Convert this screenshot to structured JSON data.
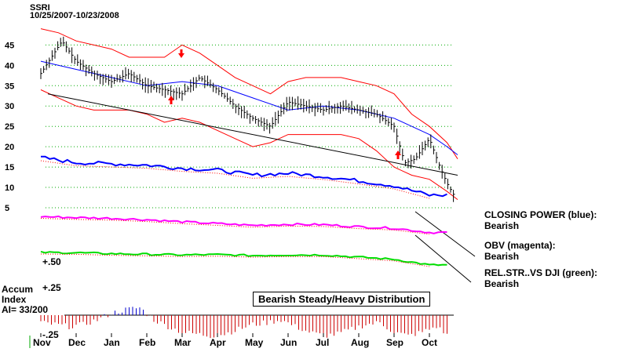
{
  "header": {
    "ticker": "SSRI",
    "date_range": "10/25/2007-10/23/2008"
  },
  "banner": "Bearish Steady/Heavy Distribution",
  "accum": {
    "label_line1": "Accum",
    "label_line2": "Index",
    "ai_value": "AI= 33/200",
    "ticks": [
      "+.50",
      "+.25",
      "-.25"
    ]
  },
  "annotations": {
    "cp_label": "CLOSING POWER (blue):",
    "cp_value": "Bearish",
    "obv_label": "OBV (magenta):",
    "obv_value": "Bearish",
    "rs_label": "REL.STR..VS DJI (green):",
    "rs_value": "Bearish"
  },
  "colors": {
    "price": "#000000",
    "bands": "#ff0000",
    "ma": "#0000ff",
    "closing_power": "#0000ff",
    "obv": "#ff00ff",
    "rel_str": "#00dd00",
    "grid": "#00aa00",
    "accum_pos": "#0000cc",
    "accum_neg": "#cc0000"
  },
  "chart_data": {
    "type": "line",
    "title": "SSRI",
    "subtitle": "10/25/2007-10/23/2008",
    "x_tick_labels": [
      "Nov",
      "Dec",
      "Jan",
      "Feb",
      "Mar",
      "Apr",
      "May",
      "Jun",
      "Jul",
      "Aug",
      "Sep",
      "Oct"
    ],
    "y_tick_labels": [
      "45",
      "40",
      "35",
      "30",
      "25",
      "20",
      "15",
      "10",
      "5"
    ],
    "ylim": [
      5,
      47
    ],
    "grid": true,
    "series": [
      {
        "name": "price",
        "x": [
          0,
          0.3,
          0.6,
          1,
          1.5,
          2,
          2.5,
          3,
          3.5,
          4,
          4.5,
          5,
          5.5,
          6,
          6.5,
          7,
          7.5,
          8,
          8.5,
          9,
          9.5,
          10,
          10.3,
          10.6,
          11,
          11.3,
          11.5,
          11.7
        ],
        "y": [
          38,
          42,
          46,
          41,
          38,
          36,
          38,
          35,
          34,
          33,
          37,
          34,
          30,
          27,
          25,
          31,
          30,
          29,
          30,
          29,
          28,
          25,
          16,
          17,
          22,
          15,
          11,
          8
        ]
      },
      {
        "name": "upper_band",
        "x": [
          0,
          0.5,
          1,
          1.5,
          2,
          2.5,
          3,
          3.5,
          4,
          4.5,
          5,
          5.5,
          6,
          6.5,
          7,
          7.5,
          8,
          8.5,
          9,
          9.5,
          10,
          10.5,
          11,
          11.5,
          11.8
        ],
        "y": [
          49,
          48,
          46,
          45,
          44,
          42,
          42,
          42,
          45,
          43,
          40,
          37,
          35,
          33,
          36,
          37,
          37,
          37,
          36,
          35,
          33,
          28,
          25,
          21,
          17
        ]
      },
      {
        "name": "lower_band",
        "x": [
          0,
          0.5,
          1,
          1.5,
          2,
          2.5,
          3,
          3.5,
          4,
          4.5,
          5,
          5.5,
          6,
          6.5,
          7,
          7.5,
          8,
          8.5,
          9,
          9.5,
          10,
          10.5,
          11,
          11.5,
          11.8
        ],
        "y": [
          34,
          32,
          30,
          29,
          29,
          29,
          28,
          26,
          27,
          26,
          24,
          22,
          20,
          21,
          23,
          23,
          23,
          23,
          22,
          19,
          15,
          13,
          12,
          9,
          7
        ]
      },
      {
        "name": "moving_average",
        "x": [
          0,
          1,
          2,
          3,
          4,
          5,
          6,
          7,
          8,
          9,
          10,
          10.5,
          11,
          11.5,
          11.8
        ],
        "y": [
          41,
          39,
          37,
          35,
          36,
          35,
          32,
          29,
          30,
          29,
          27,
          25,
          23,
          20,
          18
        ]
      },
      {
        "name": "trend_line",
        "x": [
          0.2,
          11.8
        ],
        "y": [
          33,
          13
        ]
      }
    ],
    "indicators": {
      "closing_power": [
        0.8,
        0.72,
        0.7,
        0.68,
        0.63,
        0.6,
        0.52,
        0.55,
        0.5,
        0.43,
        0.35,
        0.2
      ],
      "obv": [
        0.75,
        0.72,
        0.7,
        0.66,
        0.6,
        0.55,
        0.5,
        0.53,
        0.52,
        0.46,
        0.42,
        0.3
      ],
      "rel_str": [
        0.7,
        0.69,
        0.66,
        0.64,
        0.62,
        0.63,
        0.6,
        0.62,
        0.62,
        0.55,
        0.48,
        0.3
      ]
    },
    "accumulation_index": {
      "ylim": [
        -0.25,
        0.25
      ],
      "values": [
        -0.08,
        -0.1,
        -0.12,
        -0.1,
        -0.05,
        0.02,
        0.06,
        0.08,
        -0.05,
        -0.12,
        -0.18,
        -0.2,
        -0.22,
        -0.2,
        -0.15,
        -0.1,
        -0.08,
        -0.05,
        -0.12,
        -0.18,
        -0.22,
        -0.2,
        -0.15,
        -0.1,
        -0.08,
        -0.18,
        -0.22,
        -0.18,
        -0.12,
        -0.24
      ]
    }
  }
}
